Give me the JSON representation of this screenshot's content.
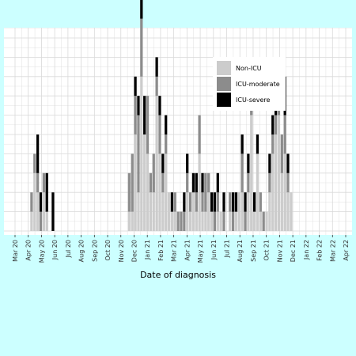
{
  "chart_data": {
    "type": "bar",
    "stacked": true,
    "xlabel": "Date of diagnosis",
    "ylabel": "",
    "x_ticks": [
      "Mar 20",
      "Apr 20",
      "May 20",
      "Jun 20",
      "Jul 20",
      "Aug 20",
      "Sep 20",
      "Oct 20",
      "Nov 20",
      "Dec 20",
      "Jan 21",
      "Feb 21",
      "Mar 21",
      "Apr 21",
      "May 21",
      "Jun 21",
      "Jul 21",
      "Aug 21",
      "Sep 21",
      "Oct 21",
      "Nov 21",
      "Dec 21",
      "Jan 22",
      "Feb 22",
      "Mar 22",
      "Apr 22"
    ],
    "x_range_months": [
      "Mar 20",
      "Apr 22"
    ],
    "ylim": [
      0,
      11
    ],
    "grid": true,
    "legend_position": "top-right",
    "colors": {
      "Non-ICU": "#cccccc",
      "ICU-moderate": "#8c8c8c",
      "ICU-severe": "#000000",
      "background": "#ccffff",
      "panel": "#ffffff",
      "grid": "#d9d9d9"
    },
    "bin_unit": "week",
    "series": [
      {
        "name": "Non-ICU",
        "weeks": [
          [
            5,
            1
          ],
          [
            6,
            3
          ],
          [
            7,
            2
          ],
          [
            9,
            2
          ],
          [
            10,
            1
          ],
          [
            37,
            1
          ],
          [
            38,
            1
          ],
          [
            39,
            5
          ],
          [
            40,
            2
          ],
          [
            41,
            8
          ],
          [
            42,
            5
          ],
          [
            43,
            4
          ],
          [
            44,
            2
          ],
          [
            45,
            2
          ],
          [
            46,
            7
          ],
          [
            47,
            4
          ],
          [
            48,
            2
          ],
          [
            49,
            4
          ],
          [
            50,
            2
          ],
          [
            51,
            1
          ],
          [
            52,
            1
          ],
          [
            56,
            2
          ],
          [
            57,
            1
          ],
          [
            58,
            2
          ],
          [
            59,
            1
          ],
          [
            60,
            4
          ],
          [
            61,
            1
          ],
          [
            62,
            1
          ],
          [
            63,
            2
          ],
          [
            64,
            1
          ],
          [
            66,
            1
          ],
          [
            67,
            1
          ],
          [
            70,
            1
          ],
          [
            72,
            1
          ],
          [
            73,
            2
          ],
          [
            74,
            2
          ],
          [
            76,
            2
          ],
          [
            77,
            6
          ],
          [
            78,
            1
          ],
          [
            79,
            4
          ],
          [
            80,
            1
          ],
          [
            82,
            1
          ],
          [
            83,
            2
          ],
          [
            84,
            4
          ],
          [
            85,
            5
          ],
          [
            86,
            6
          ],
          [
            87,
            3
          ],
          [
            88,
            4
          ],
          [
            89,
            2
          ],
          [
            90,
            2
          ]
        ]
      },
      {
        "name": "ICU-moderate",
        "weeks": [
          [
            5,
            1
          ],
          [
            6,
            1
          ],
          [
            7,
            1
          ],
          [
            8,
            1
          ],
          [
            9,
            1
          ],
          [
            37,
            2
          ],
          [
            38,
            3
          ],
          [
            39,
            2
          ],
          [
            40,
            4
          ],
          [
            41,
            3
          ],
          [
            43,
            3
          ],
          [
            44,
            1
          ],
          [
            45,
            2
          ],
          [
            46,
            1
          ],
          [
            47,
            2
          ],
          [
            48,
            1
          ],
          [
            49,
            1
          ],
          [
            52,
            1
          ],
          [
            53,
            1
          ],
          [
            54,
            1
          ],
          [
            55,
            1
          ],
          [
            56,
            1
          ],
          [
            57,
            1
          ],
          [
            59,
            1
          ],
          [
            60,
            2
          ],
          [
            61,
            1
          ],
          [
            62,
            2
          ],
          [
            63,
            1
          ],
          [
            65,
            1
          ],
          [
            66,
            1
          ],
          [
            68,
            1
          ],
          [
            70,
            1
          ],
          [
            71,
            1
          ],
          [
            74,
            2
          ],
          [
            75,
            1
          ],
          [
            76,
            1
          ],
          [
            77,
            1
          ],
          [
            80,
            1
          ],
          [
            81,
            1
          ],
          [
            83,
            1
          ],
          [
            84,
            1
          ],
          [
            85,
            1
          ],
          [
            86,
            1
          ],
          [
            87,
            2
          ],
          [
            88,
            2
          ],
          [
            89,
            1
          ]
        ]
      },
      {
        "name": "ICU-severe",
        "weeks": [
          [
            7,
            2
          ],
          [
            8,
            1
          ],
          [
            10,
            2
          ],
          [
            12,
            2
          ],
          [
            39,
            1
          ],
          [
            40,
            1
          ],
          [
            41,
            5
          ],
          [
            42,
            2
          ],
          [
            46,
            1
          ],
          [
            47,
            1
          ],
          [
            48,
            1
          ],
          [
            49,
            1
          ],
          [
            51,
            1
          ],
          [
            55,
            1
          ],
          [
            56,
            1
          ],
          [
            58,
            1
          ],
          [
            59,
            1
          ],
          [
            61,
            1
          ],
          [
            64,
            1
          ],
          [
            65,
            1
          ],
          [
            66,
            1
          ],
          [
            68,
            1
          ],
          [
            71,
            1
          ],
          [
            72,
            1
          ],
          [
            74,
            1
          ],
          [
            75,
            1
          ],
          [
            76,
            1
          ],
          [
            78,
            1
          ],
          [
            79,
            1
          ],
          [
            83,
            1
          ],
          [
            84,
            1
          ],
          [
            85,
            1
          ],
          [
            86,
            1
          ],
          [
            88,
            2
          ],
          [
            89,
            1
          ]
        ]
      }
    ]
  }
}
